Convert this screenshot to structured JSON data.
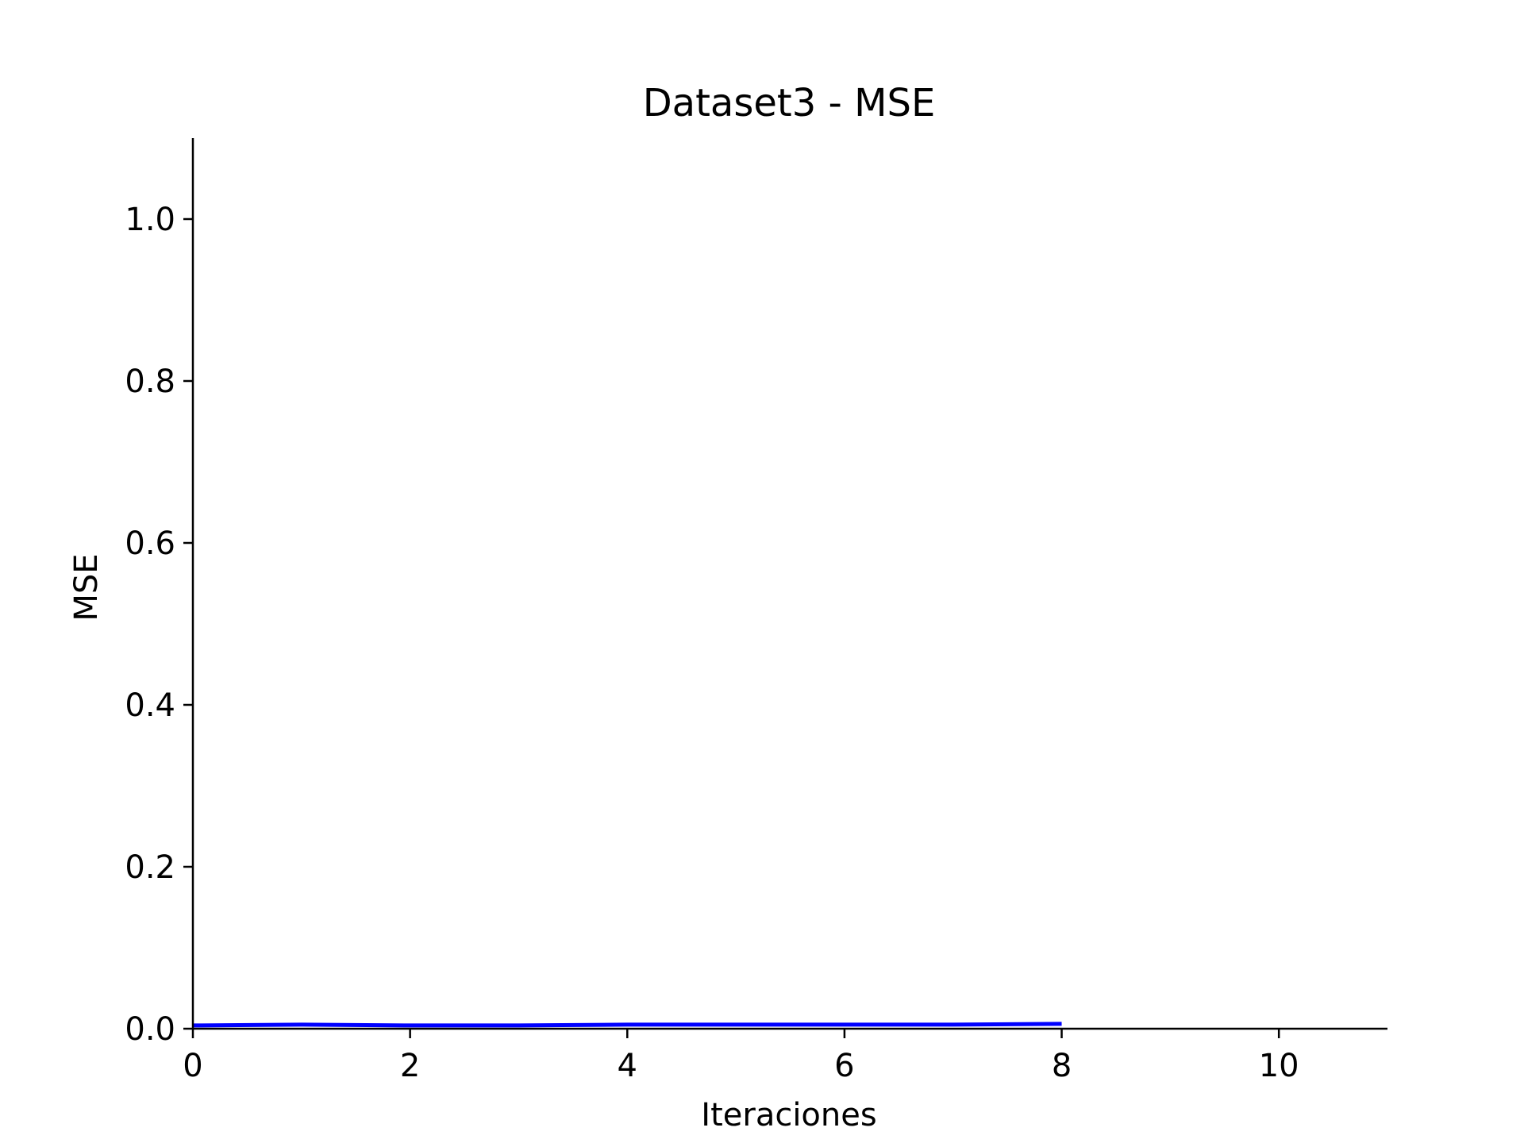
{
  "chart_data": {
    "type": "line",
    "title": "Dataset3 - MSE",
    "xlabel": "Iteraciones",
    "ylabel": "MSE",
    "xlim": [
      0,
      11
    ],
    "ylim": [
      0,
      1.1
    ],
    "x_ticks": [
      0,
      2,
      4,
      6,
      8,
      10
    ],
    "x_tick_labels": [
      "0",
      "2",
      "4",
      "6",
      "8",
      "10"
    ],
    "y_ticks": [
      0.0,
      0.2,
      0.4,
      0.6,
      0.8,
      1.0
    ],
    "y_tick_labels": [
      "0.0",
      "0.2",
      "0.4",
      "0.6",
      "0.8",
      "1.0"
    ],
    "grid": false,
    "legend": "none",
    "series": [
      {
        "color": "#0000ff",
        "x": [
          0,
          1,
          2,
          3,
          4,
          5,
          6,
          7,
          8
        ],
        "values": [
          0.004,
          0.005,
          0.004,
          0.004,
          0.005,
          0.005,
          0.005,
          0.005,
          0.006
        ]
      }
    ]
  }
}
